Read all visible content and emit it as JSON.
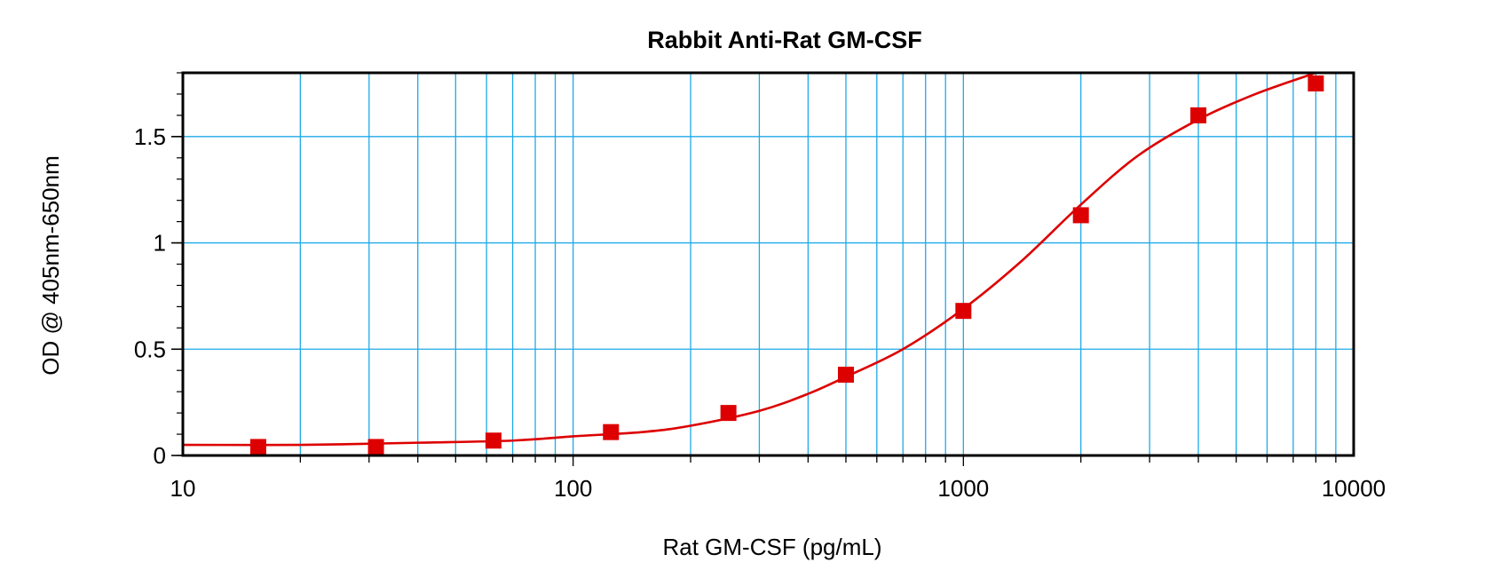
{
  "chart_data": {
    "type": "scatter",
    "title": "Rabbit Anti-Rat GM-CSF",
    "xlabel": "Rat GM-CSF (pg/mL)",
    "ylabel": "OD @ 405nm-650nm",
    "xscale": "log",
    "xlim": [
      10,
      10000
    ],
    "ylim": [
      0,
      1.8
    ],
    "grid": true,
    "x_ticks": [
      10,
      100,
      1000,
      10000
    ],
    "x_tick_labels": [
      "10",
      "100",
      "1000",
      "10000"
    ],
    "y_ticks": [
      0,
      0.5,
      1,
      1.5
    ],
    "y_tick_labels": [
      "0",
      "0.5",
      "1",
      "1.5"
    ],
    "series": [
      {
        "mode": "markers",
        "x": [
          15.6,
          31.25,
          62.5,
          125,
          250,
          500,
          1000,
          2000,
          4000,
          8000
        ],
        "y": [
          0.04,
          0.04,
          0.07,
          0.11,
          0.2,
          0.38,
          0.68,
          1.13,
          1.6,
          1.75
        ]
      },
      {
        "mode": "fitted-curve",
        "x": [
          10,
          20,
          40,
          70,
          100,
          150,
          200,
          300,
          400,
          500,
          700,
          1000,
          1400,
          2000,
          2800,
          4000,
          5600,
          8000
        ],
        "y": [
          0.05,
          0.05,
          0.06,
          0.07,
          0.09,
          0.11,
          0.14,
          0.21,
          0.29,
          0.37,
          0.5,
          0.69,
          0.91,
          1.18,
          1.41,
          1.58,
          1.7,
          1.8
        ]
      }
    ],
    "colors": {
      "series": "#dd0000",
      "grid": "#1eaae8",
      "frame": "#000000"
    }
  }
}
